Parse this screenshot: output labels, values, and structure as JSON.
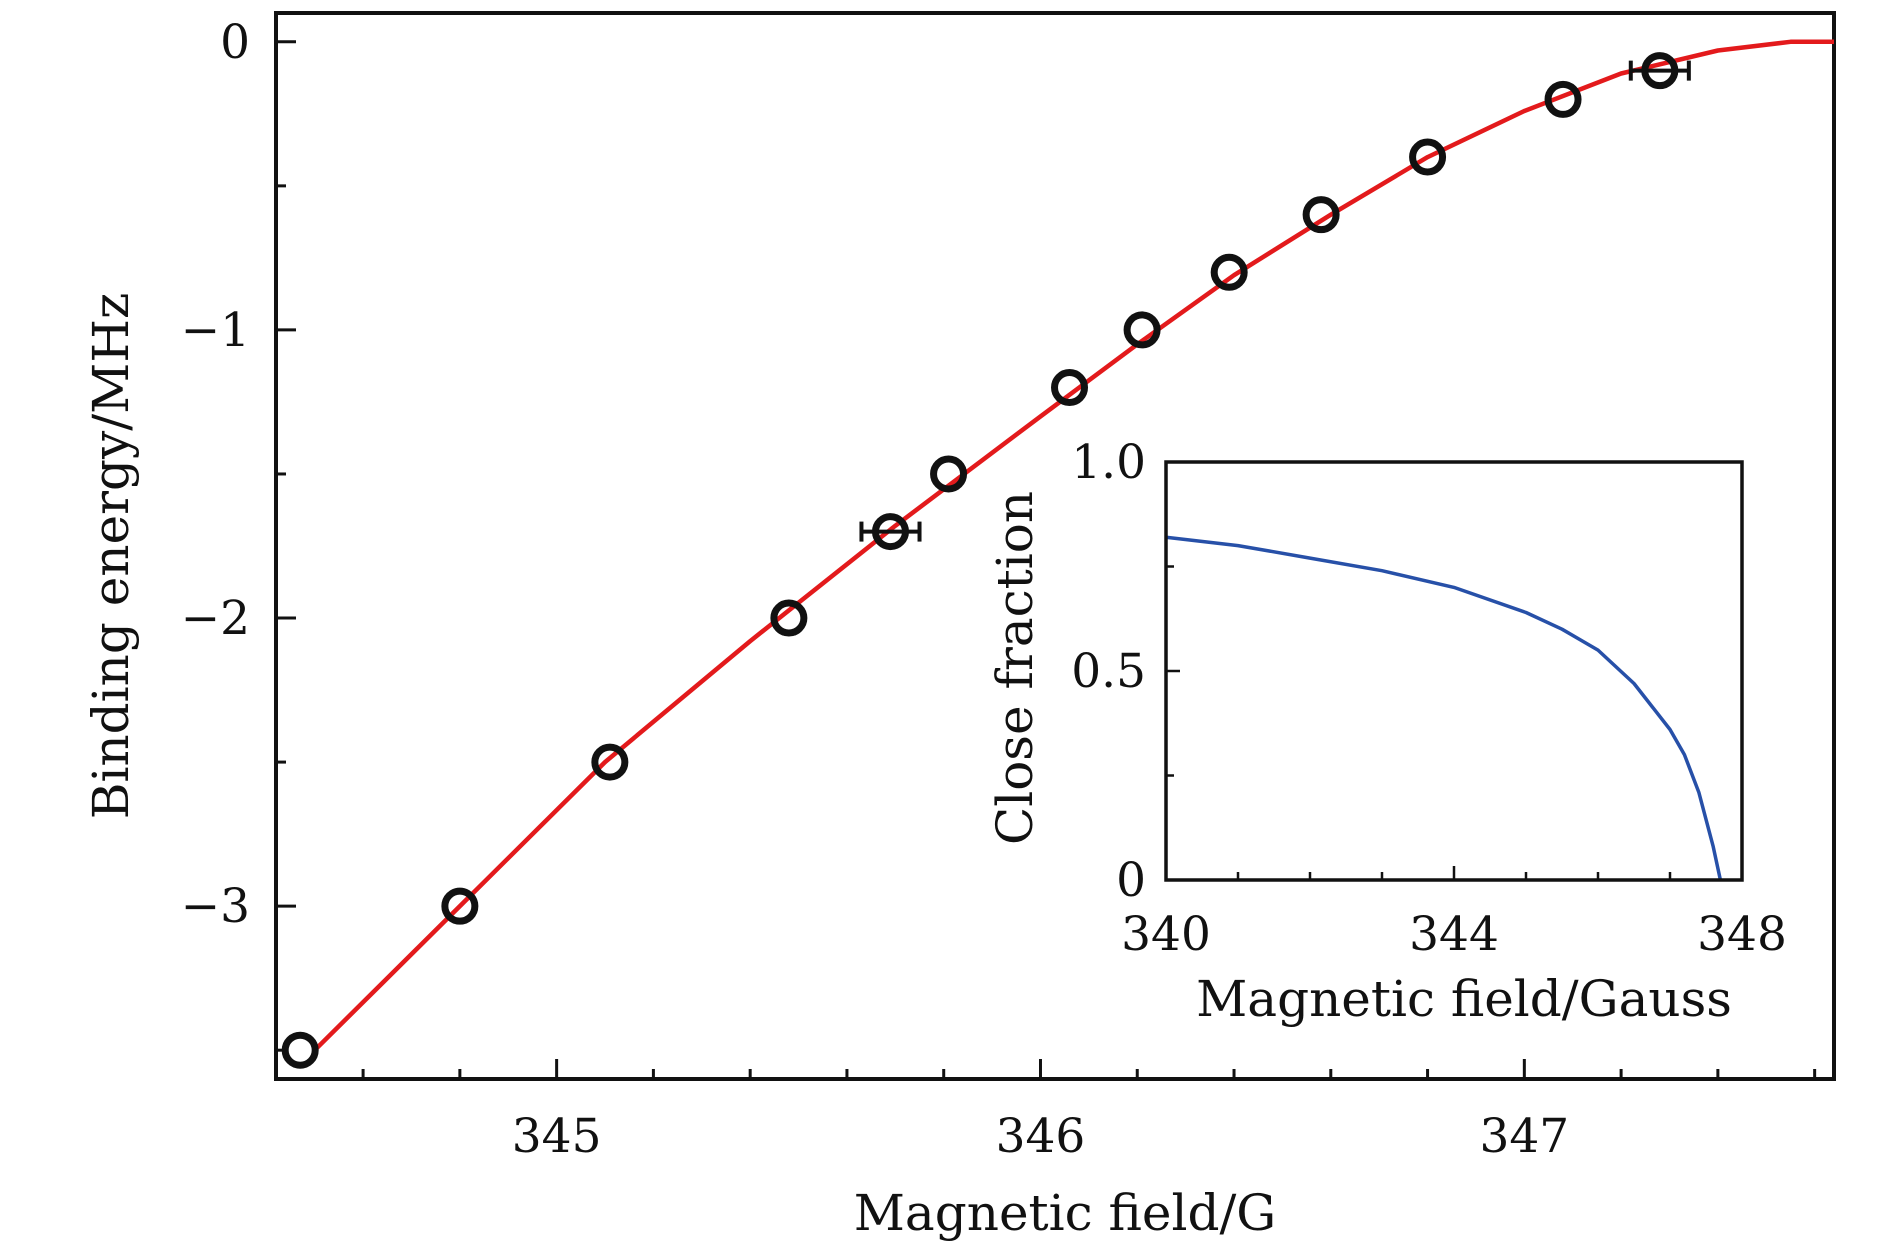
{
  "chart_data": [
    {
      "type": "scatter",
      "xlabel": "Magnetic field/G",
      "ylabel": "Binding energy/MHz",
      "xlim": [
        344.42,
        347.64
      ],
      "ylim": [
        -3.6,
        0.1
      ],
      "x_ticks": [
        345,
        346,
        347
      ],
      "x_tick_labels": [
        "345",
        "346",
        "347"
      ],
      "y_ticks": [
        0,
        -1,
        -2,
        -3
      ],
      "y_tick_labels": [
        "0",
        "−1",
        "−2",
        "−3"
      ],
      "grid": false,
      "legend": "none",
      "series": [
        {
          "kind": "points",
          "marker": "open-circle",
          "color": "#111111",
          "x": [
            344.47,
            344.8,
            345.11,
            345.48,
            345.69,
            345.81,
            346.06,
            346.21,
            346.39,
            346.58,
            346.8,
            347.08,
            347.28
          ],
          "y": [
            -3.5,
            -3.0,
            -2.5,
            -2.0,
            -1.7,
            -1.5,
            -1.2,
            -1.0,
            -0.8,
            -0.6,
            -0.4,
            -0.2,
            -0.1
          ],
          "x_error": [
            0.01,
            0.01,
            0.01,
            0.03,
            0.06,
            0.01,
            0.01,
            0.01,
            0.01,
            0.01,
            0.01,
            0.02,
            0.06
          ]
        },
        {
          "kind": "line",
          "color": "#e31a1c",
          "x": [
            344.5,
            344.8,
            345.1,
            345.4,
            345.7,
            346.0,
            346.2,
            346.4,
            346.6,
            346.8,
            347.0,
            347.2,
            347.4,
            347.55,
            347.64
          ],
          "y": [
            -3.5,
            -3.0,
            -2.5,
            -2.08,
            -1.68,
            -1.3,
            -1.05,
            -0.81,
            -0.6,
            -0.4,
            -0.24,
            -0.11,
            -0.03,
            0.0,
            0.0
          ]
        }
      ]
    },
    {
      "type": "line",
      "placement": "inset-lower-right",
      "xlabel": "Magnetic field/Gauss",
      "ylabel": "Close fraction",
      "xlim": [
        340,
        348
      ],
      "ylim": [
        0,
        1.0
      ],
      "x_ticks": [
        340,
        344,
        348
      ],
      "x_tick_labels": [
        "340",
        "344",
        "348"
      ],
      "y_ticks": [
        0,
        0.5,
        1.0
      ],
      "y_tick_labels": [
        "0",
        "0.5",
        "1.0"
      ],
      "grid": false,
      "series": [
        {
          "color": "#2750a8",
          "x": [
            340,
            341,
            342,
            343,
            344,
            345,
            345.5,
            346,
            346.5,
            347,
            347.2,
            347.4,
            347.6,
            347.7
          ],
          "y": [
            0.82,
            0.8,
            0.77,
            0.74,
            0.7,
            0.64,
            0.6,
            0.55,
            0.47,
            0.36,
            0.3,
            0.21,
            0.08,
            0.0
          ]
        }
      ]
    }
  ]
}
